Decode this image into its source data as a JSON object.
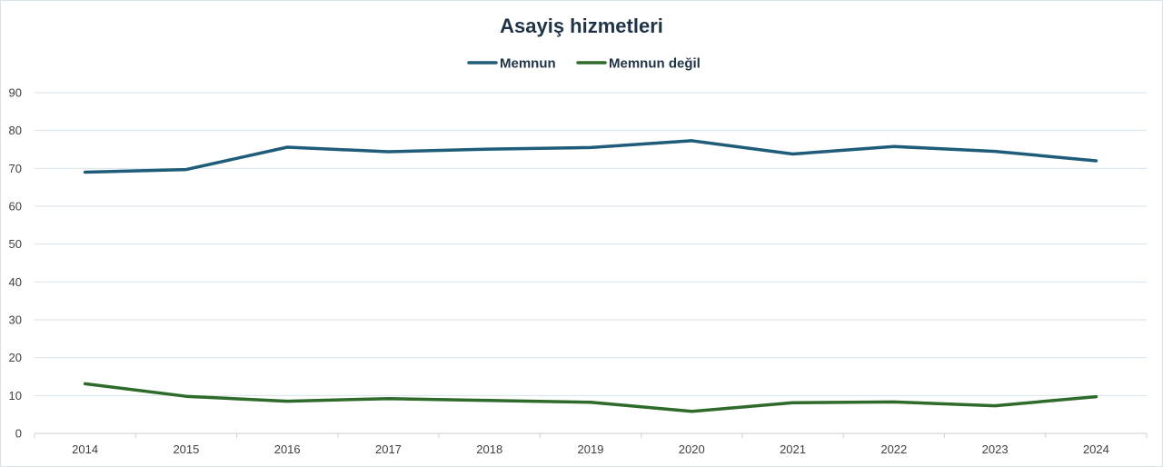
{
  "chart_data": {
    "type": "line",
    "title": "Asayiş hizmetleri",
    "categories": [
      "2014",
      "2015",
      "2016",
      "2017",
      "2018",
      "2019",
      "2020",
      "2021",
      "2022",
      "2023",
      "2024"
    ],
    "ylim": [
      0,
      90
    ],
    "yticks": [
      0,
      10,
      20,
      30,
      40,
      50,
      60,
      70,
      80,
      90
    ],
    "grid": true,
    "legend_position": "top-center",
    "series": [
      {
        "name": "Memnun",
        "color": "#1f5c7a",
        "values": [
          69.0,
          69.7,
          75.6,
          74.4,
          75.1,
          75.5,
          77.3,
          73.8,
          75.8,
          74.5,
          72.0
        ]
      },
      {
        "name": "Memnun değil",
        "color": "#2e6b2a",
        "values": [
          13.1,
          9.8,
          8.5,
          9.2,
          8.7,
          8.2,
          5.8,
          8.1,
          8.3,
          7.3,
          9.7
        ]
      }
    ]
  }
}
